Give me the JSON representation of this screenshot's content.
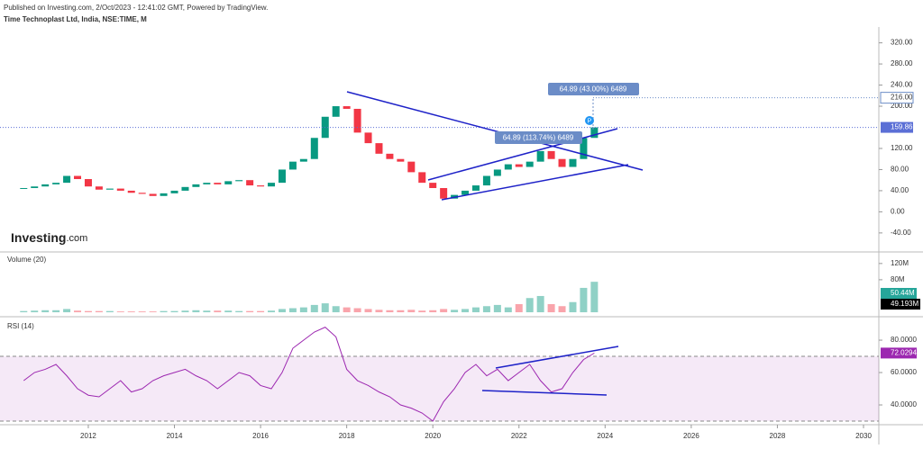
{
  "header": {
    "published": "Published on Investing.com, 2/Oct/2023 - 12:41:02 GMT, Powered by TradingView.",
    "symbol": "Time Technoplast Ltd, India, NSE:TIME, M"
  },
  "logo": {
    "brand": "Investing",
    "suffix": ".com"
  },
  "chart_data": [
    {
      "type": "candlestick",
      "up_color": "#089981",
      "down_color": "#f23645",
      "x": [
        2010.5,
        2010.75,
        2011,
        2011.25,
        2011.5,
        2011.75,
        2012,
        2012.25,
        2012.5,
        2012.75,
        2013,
        2013.25,
        2013.5,
        2013.75,
        2014,
        2014.25,
        2014.5,
        2014.75,
        2015,
        2015.25,
        2015.5,
        2015.75,
        2016,
        2016.25,
        2016.5,
        2016.75,
        2017,
        2017.25,
        2017.5,
        2017.75,
        2018,
        2018.25,
        2018.5,
        2018.75,
        2019,
        2019.25,
        2019.5,
        2019.75,
        2020,
        2020.25,
        2020.5,
        2020.75,
        2021,
        2021.25,
        2021.5,
        2021.75,
        2022,
        2022.25,
        2022.5,
        2022.75,
        2023,
        2023.25,
        2023.5,
        2023.75
      ],
      "values": [
        45,
        48,
        52,
        55,
        68,
        62,
        48,
        42,
        44,
        40,
        36,
        34,
        30,
        35,
        40,
        47,
        52,
        55,
        52,
        58,
        60,
        50,
        48,
        55,
        80,
        95,
        100,
        140,
        180,
        200,
        195,
        150,
        130,
        110,
        100,
        95,
        75,
        55,
        45,
        25,
        32,
        40,
        50,
        68,
        80,
        90,
        85,
        95,
        115,
        100,
        85,
        100,
        140,
        159.86
      ],
      "xlim": [
        2010,
        2031
      ],
      "xticks": [
        2012,
        2014,
        2016,
        2018,
        2020,
        2022,
        2024,
        2026,
        2028,
        2030
      ],
      "ylim": [
        -76,
        350
      ],
      "yticks": [
        {
          "value": -40,
          "label": "-40.00"
        },
        {
          "value": 0,
          "label": "0.00"
        },
        {
          "value": 40,
          "label": "40.00"
        },
        {
          "value": 80,
          "label": "80.00"
        },
        {
          "value": 120,
          "label": "120.00"
        },
        {
          "value": 200,
          "label": "200.00"
        },
        {
          "value": 240,
          "label": "240.00"
        },
        {
          "value": 280,
          "label": "280.00"
        },
        {
          "value": 320,
          "label": "320.00"
        }
      ],
      "last_label": "159.86",
      "target": {
        "value": 216,
        "label": "216.00"
      },
      "annotations": [
        "64.89 (43.00%) 6489",
        "64.89 (113.74%) 6489"
      ],
      "marker": "P"
    },
    {
      "type": "bar",
      "title": "Volume (20)",
      "values": [
        3,
        4,
        5,
        5,
        8,
        4,
        3,
        3,
        3,
        2,
        2,
        2,
        2,
        3,
        3,
        4,
        5,
        4,
        4,
        4,
        3,
        3,
        3,
        4,
        8,
        10,
        12,
        18,
        22,
        15,
        12,
        10,
        8,
        6,
        5,
        5,
        6,
        4,
        5,
        8,
        6,
        8,
        12,
        15,
        18,
        12,
        20,
        35,
        40,
        20,
        15,
        25,
        60,
        75
      ],
      "ylim": [
        -11,
        144
      ],
      "yticks": [
        {
          "value": 80,
          "label": "80M"
        },
        {
          "value": 120,
          "label": "120M"
        }
      ],
      "last_labels": [
        "50.44M",
        "49.193M"
      ]
    },
    {
      "type": "line",
      "title": "RSI (14)",
      "color": "#9c27b0",
      "values": [
        55,
        60,
        62,
        65,
        58,
        50,
        46,
        45,
        50,
        55,
        48,
        50,
        55,
        58,
        60,
        62,
        58,
        55,
        50,
        55,
        60,
        58,
        52,
        50,
        60,
        75,
        80,
        85,
        88,
        82,
        62,
        55,
        52,
        48,
        45,
        40,
        38,
        35,
        30,
        42,
        50,
        60,
        65,
        58,
        62,
        55,
        60,
        65,
        55,
        48,
        50,
        60,
        68,
        72.0294
      ],
      "ylim": [
        28.9,
        92.8
      ],
      "yticks": [
        {
          "value": 40,
          "label": "40.0000"
        },
        {
          "value": 60,
          "label": "60.0000"
        },
        {
          "value": 80,
          "label": "80.0000"
        }
      ],
      "bands": [
        30,
        70
      ],
      "last_label": "72.0294"
    }
  ]
}
